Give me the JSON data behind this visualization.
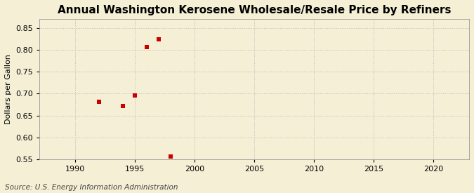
{
  "title": "Annual Washington Kerosene Wholesale/Resale Price by Refiners",
  "ylabel": "Dollars per Gallon",
  "source": "Source: U.S. Energy Information Administration",
  "x_data": [
    1992,
    1994,
    1995,
    1996,
    1997,
    1998
  ],
  "y_data": [
    0.682,
    0.672,
    0.696,
    0.806,
    0.824,
    0.556
  ],
  "xlim": [
    1987,
    2023
  ],
  "ylim": [
    0.55,
    0.87
  ],
  "xticks": [
    1990,
    1995,
    2000,
    2005,
    2010,
    2015,
    2020
  ],
  "yticks": [
    0.55,
    0.6,
    0.65,
    0.7,
    0.75,
    0.8,
    0.85
  ],
  "marker_color": "#cc0000",
  "marker": "s",
  "marker_size": 4,
  "background_color": "#f5efd5",
  "grid_color": "#bbbbbb",
  "title_fontsize": 11,
  "label_fontsize": 8,
  "tick_fontsize": 8,
  "source_fontsize": 7.5
}
